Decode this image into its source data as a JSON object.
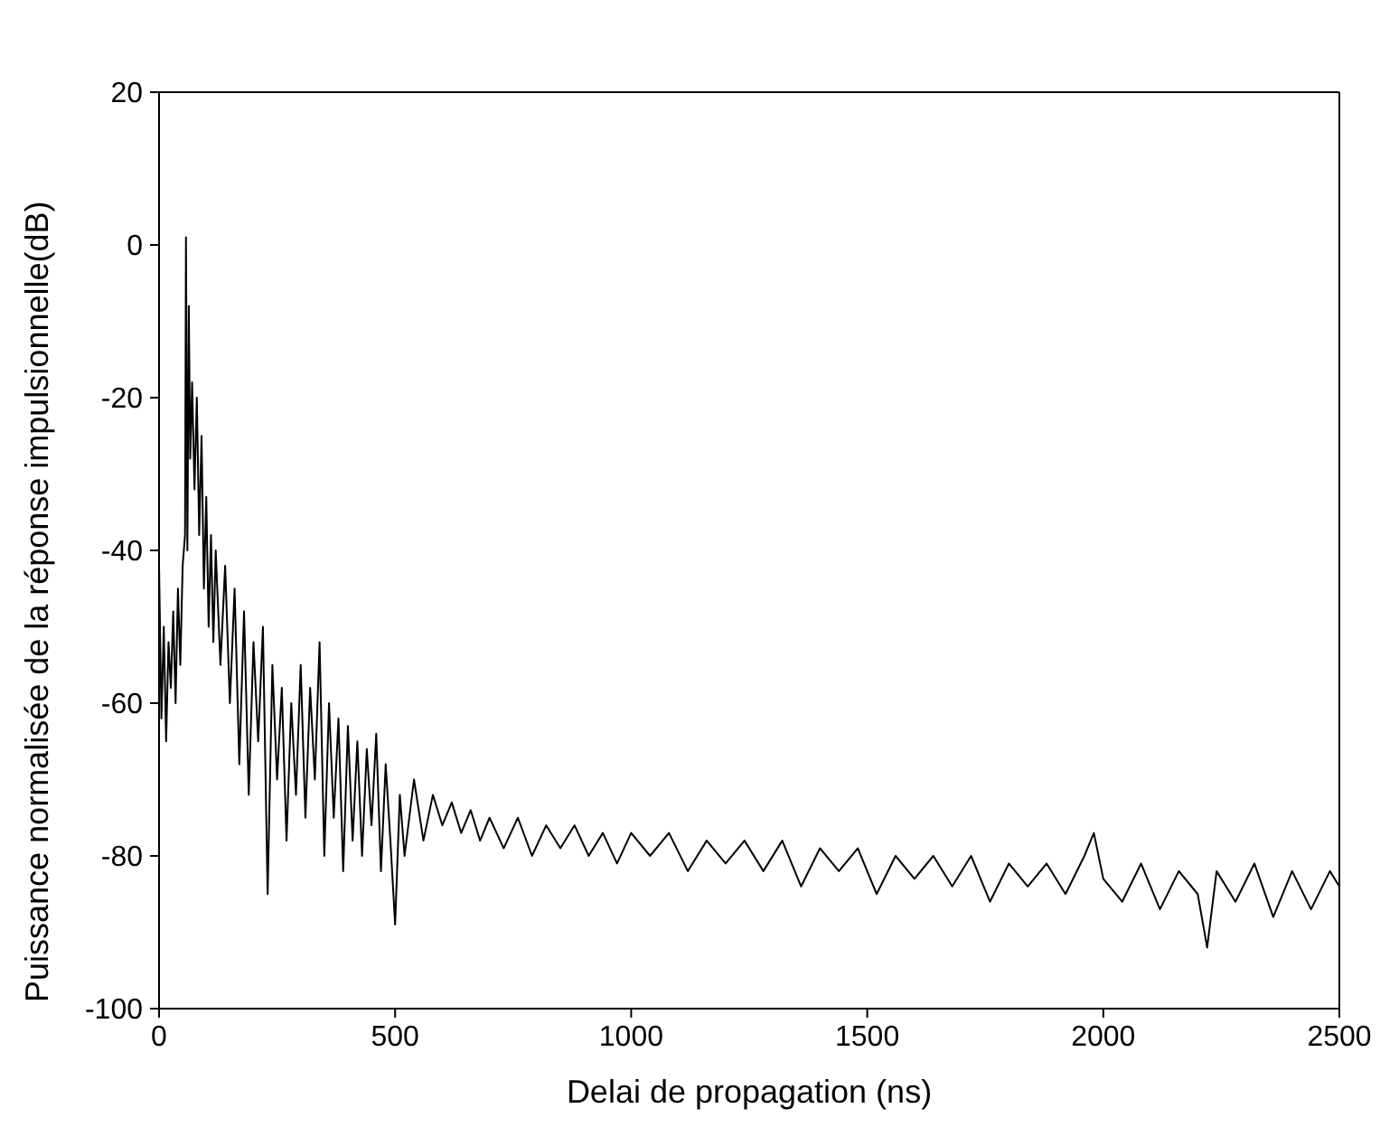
{
  "chart_data": {
    "type": "line",
    "xlabel": "Delai de propagation (ns)",
    "ylabel": "Puissance normalisée de la réponse impulsionnelle(dB)",
    "x": [
      0,
      5,
      10,
      15,
      20,
      25,
      30,
      35,
      40,
      45,
      50,
      55,
      57,
      60,
      63,
      66,
      70,
      75,
      80,
      85,
      90,
      95,
      100,
      105,
      110,
      115,
      120,
      130,
      140,
      150,
      160,
      170,
      180,
      190,
      200,
      210,
      220,
      230,
      240,
      250,
      260,
      270,
      280,
      290,
      300,
      310,
      320,
      330,
      340,
      350,
      360,
      370,
      380,
      390,
      400,
      410,
      420,
      430,
      440,
      450,
      460,
      470,
      480,
      490,
      500,
      510,
      520,
      540,
      560,
      580,
      600,
      620,
      640,
      660,
      680,
      700,
      730,
      760,
      790,
      820,
      850,
      880,
      910,
      940,
      970,
      1000,
      1040,
      1080,
      1120,
      1160,
      1200,
      1240,
      1280,
      1320,
      1360,
      1400,
      1440,
      1480,
      1520,
      1560,
      1600,
      1640,
      1680,
      1720,
      1760,
      1800,
      1840,
      1880,
      1920,
      1960,
      1980,
      2000,
      2040,
      2080,
      2120,
      2160,
      2200,
      2220,
      2240,
      2280,
      2320,
      2360,
      2400,
      2440,
      2480,
      2500
    ],
    "series": [
      {
        "color": "#000000",
        "values": [
          -42,
          -62,
          -50,
          -65,
          -52,
          -58,
          -48,
          -60,
          -45,
          -55,
          -42,
          -38,
          1,
          -40,
          -8,
          -28,
          -18,
          -32,
          -20,
          -38,
          -25,
          -45,
          -33,
          -50,
          -38,
          -52,
          -40,
          -55,
          -42,
          -60,
          -45,
          -68,
          -48,
          -72,
          -52,
          -65,
          -50,
          -85,
          -55,
          -70,
          -58,
          -78,
          -60,
          -72,
          -55,
          -75,
          -58,
          -70,
          -52,
          -80,
          -60,
          -75,
          -62,
          -82,
          -63,
          -78,
          -65,
          -80,
          -66,
          -76,
          -64,
          -82,
          -68,
          -78,
          -89,
          -72,
          -80,
          -70,
          -78,
          -72,
          -76,
          -73,
          -77,
          -74,
          -78,
          -75,
          -79,
          -75,
          -80,
          -76,
          -79,
          -76,
          -80,
          -77,
          -81,
          -77,
          -80,
          -77,
          -82,
          -78,
          -81,
          -78,
          -82,
          -78,
          -84,
          -79,
          -82,
          -79,
          -85,
          -80,
          -83,
          -80,
          -84,
          -80,
          -86,
          -81,
          -84,
          -81,
          -85,
          -80,
          -77,
          -83,
          -86,
          -81,
          -87,
          -82,
          -85,
          -92,
          -82,
          -86,
          -81,
          -88,
          -82,
          -87,
          -82,
          -84
        ]
      }
    ],
    "xlim": [
      0,
      2500
    ],
    "xticks": [
      0,
      500,
      1000,
      1500,
      2000,
      2500
    ],
    "ylim": [
      -100,
      20
    ],
    "yticks": [
      -100,
      -80,
      -60,
      -40,
      -20,
      0,
      20
    ],
    "grid": false,
    "marker": "none",
    "line_style": "solid"
  }
}
